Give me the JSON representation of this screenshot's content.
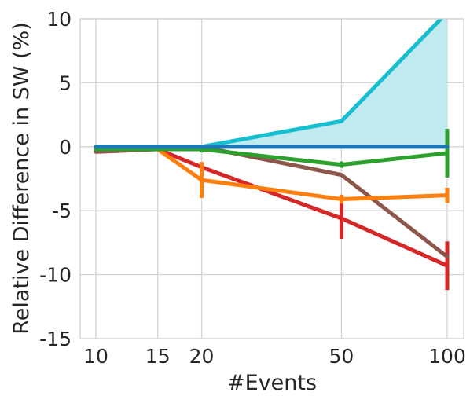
{
  "chart_data": {
    "type": "line",
    "title": "",
    "xlabel": "#Events",
    "ylabel": "Relative Difference in SW (%)",
    "x_scale": "log",
    "x": [
      10,
      15,
      20,
      50,
      100
    ],
    "x_tick_labels": [
      "10",
      "15",
      "20",
      "50",
      "100"
    ],
    "ylim": [
      -15,
      10
    ],
    "y_ticks": [
      10,
      5,
      0,
      -5,
      -10,
      -15
    ],
    "y_tick_labels": [
      "10",
      "5",
      "0",
      "-5",
      "-10",
      "-15"
    ],
    "grid": true,
    "legend": "none",
    "series": [
      {
        "color": "#1f77b4",
        "values": [
          0,
          0,
          0,
          0,
          0
        ],
        "err": [
          0,
          0,
          0,
          0,
          0
        ]
      },
      {
        "color": "#17becf",
        "values": [
          0,
          0,
          0,
          2,
          10.5
        ],
        "band": [
          [
            0,
            0
          ],
          [
            0,
            0
          ],
          [
            0,
            0
          ],
          [
            0,
            2
          ],
          [
            0,
            10.5
          ]
        ],
        "band_color": "#bde9ee"
      },
      {
        "color": "#2ca02c",
        "values": [
          -0.2,
          -0.2,
          -0.2,
          -1.4,
          -0.5
        ],
        "err": [
          0,
          0,
          0.25,
          0.25,
          1.9
        ]
      },
      {
        "color": "#ff7f0e",
        "values": [
          -0.2,
          -0.2,
          -2.6,
          -4.1,
          -3.8
        ],
        "err": [
          0,
          0,
          1.4,
          0.35,
          0.6
        ]
      },
      {
        "color": "#8c564b",
        "values": [
          -0.4,
          -0.2,
          0,
          -2.2,
          -8.6
        ],
        "err": [
          0,
          0,
          0,
          0,
          0
        ]
      },
      {
        "color": "#d62728",
        "values": [
          -0.2,
          -0.2,
          -1.6,
          -5.6,
          -9.3
        ],
        "err": [
          0,
          0,
          0.4,
          1.6,
          1.9
        ]
      }
    ]
  }
}
